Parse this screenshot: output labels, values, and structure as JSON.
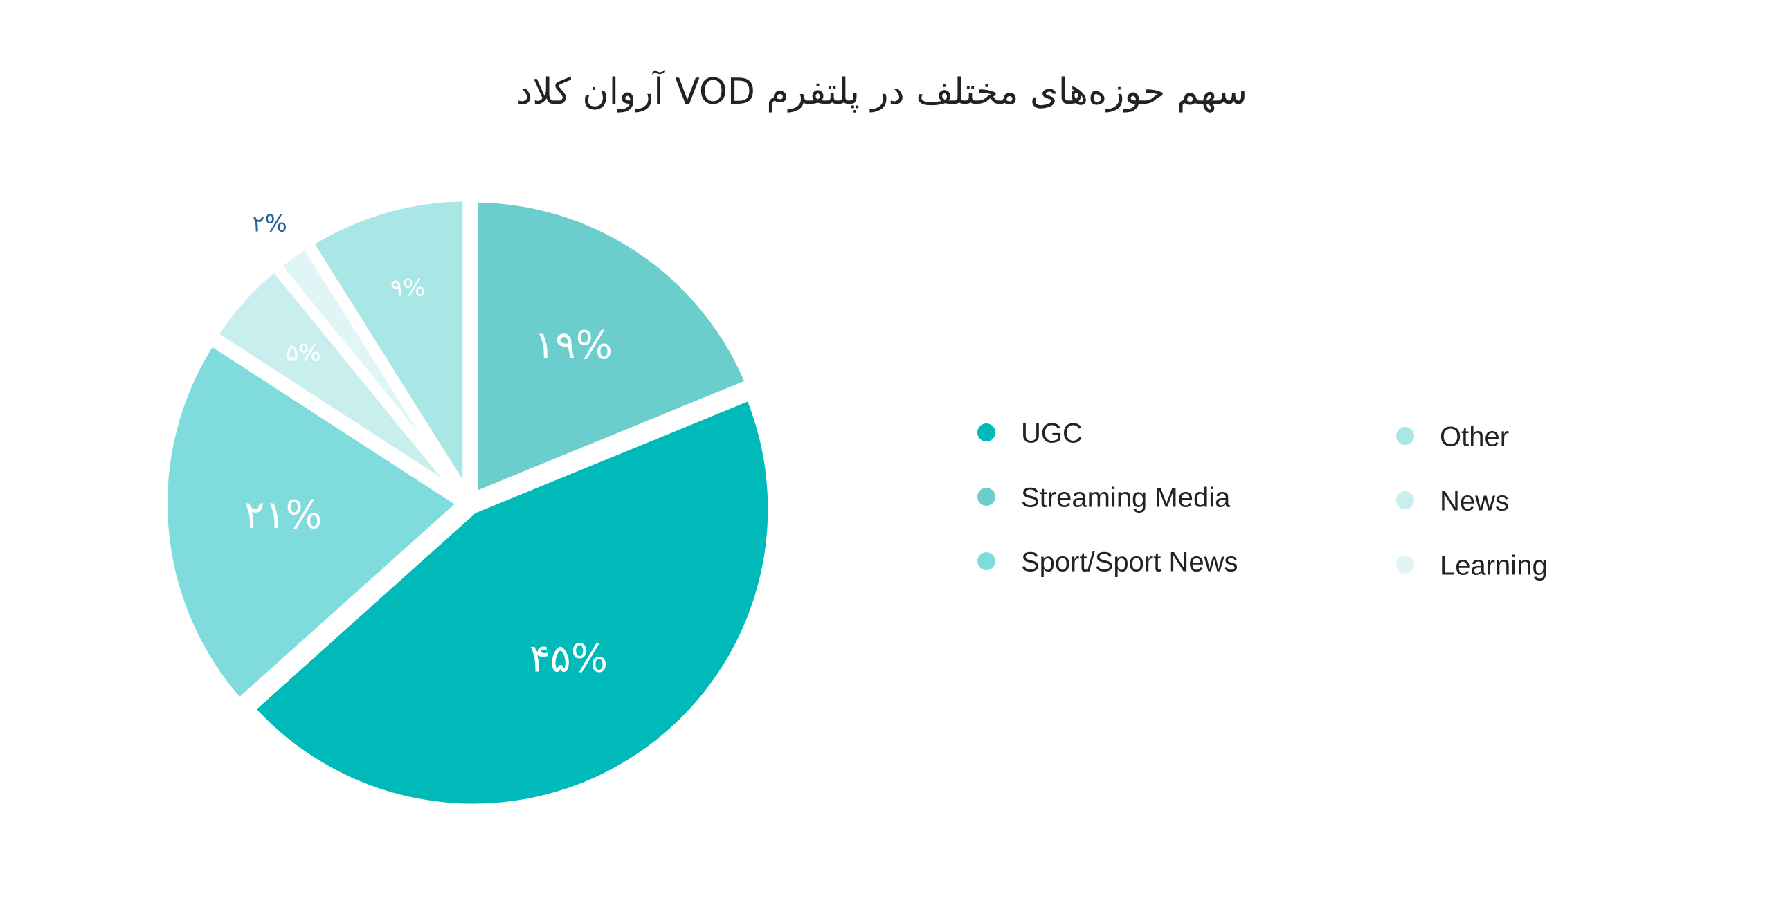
{
  "chart_data": {
    "type": "pie",
    "title": "سهم حوزه‌های مختلف در پلتفرم VOD آروان کلاد",
    "categories": [
      "Streaming Media",
      "UGC",
      "Sport/Sport News",
      "News",
      "Learning",
      "Other"
    ],
    "values": [
      19,
      45,
      21,
      5,
      2,
      9
    ],
    "value_labels": [
      "۱۹%",
      "۴۵%",
      "۲۱%",
      "۵%",
      "۲%",
      "۹%"
    ],
    "colors": [
      "#6ccdcd",
      "#00b9b9",
      "#80dcdc",
      "#c9eeee",
      "#e0f6f6",
      "#a9e6e6"
    ],
    "legend_order": [
      "UGC",
      "Streaming Media",
      "Sport/Sport News",
      "Other",
      "News",
      "Learning"
    ]
  }
}
